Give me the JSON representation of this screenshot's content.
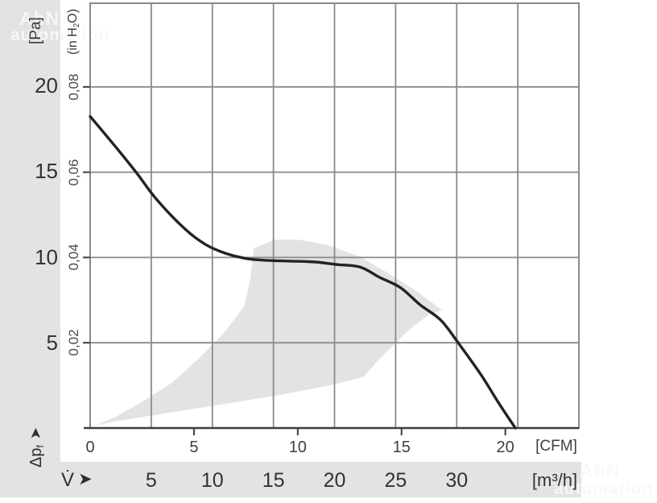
{
  "watermarks": {
    "top_left": {
      "line1": "AbN",
      "line2": "automation"
    },
    "bottom_right": {
      "line1": "AbN",
      "line2": "automation"
    }
  },
  "y_axis": {
    "pa_unit": "[Pa]",
    "pa_ticks": [
      "20",
      "15",
      "10",
      "5"
    ],
    "inh2o_unit_parts": {
      "open": "(in H",
      "sub": "2",
      "close": "O)"
    },
    "inh2o_ticks": [
      "0,08",
      "0,06",
      "0,04",
      "0,02"
    ],
    "title": {
      "main": "Δp",
      "sub": "f",
      "arrow": "➤"
    }
  },
  "x_axis": {
    "cfm_ticks": [
      "0",
      "5",
      "10",
      "15",
      "20"
    ],
    "cfm_unit": "[CFM]",
    "m3h_ticks": [
      "5",
      "10",
      "15",
      "20",
      "25",
      "30"
    ],
    "m3h_unit": "[m³/h]",
    "title": {
      "main": "V̇",
      "arrow": "➤"
    }
  },
  "colors": {
    "band": "#e3e3e3",
    "region_fill": "#e3e3e3",
    "grid": "#8a8a8a",
    "frame": "#8a8a8a",
    "axis": "#3d3d3d",
    "curve": "#232323",
    "text": "#3a3a3a"
  },
  "chart_data": {
    "type": "line",
    "x_unit_primary": "m³/h",
    "x_unit_secondary": "CFM",
    "y_unit_primary": "Pa",
    "y_unit_secondary": "in H₂O",
    "x_range_m3h": [
      0,
      40
    ],
    "y_range_inh2o": [
      0,
      0.1
    ],
    "grid": "on",
    "x_gridline_step_m3h": 5,
    "y_gridline_step_inh2o": 0.02,
    "pa_tick_values": [
      20,
      15,
      10,
      5
    ],
    "inh2o_tick_values": [
      0.08,
      0.06,
      0.04,
      0.02
    ],
    "cfm_tick_values": [
      0,
      5,
      10,
      15,
      20
    ],
    "m3h_tick_values": [
      5,
      10,
      15,
      20,
      25,
      30
    ],
    "cfm_per_m3h": 0.5886,
    "series": [
      {
        "name": "fan-curve",
        "color": "#232323",
        "points_m3h_pa": [
          [
            0,
            18.2
          ],
          [
            2,
            16.5
          ],
          [
            3.8,
            14.9
          ],
          [
            5.5,
            13.3
          ],
          [
            7.8,
            11.6
          ],
          [
            9.5,
            10.7
          ],
          [
            11.1,
            10.2
          ],
          [
            12.8,
            9.9
          ],
          [
            14.4,
            9.8
          ],
          [
            16.4,
            9.75
          ],
          [
            18.4,
            9.7
          ],
          [
            20.2,
            9.55
          ],
          [
            22.1,
            9.4
          ],
          [
            23.7,
            8.8
          ],
          [
            25.4,
            8.2
          ],
          [
            27,
            7.2
          ],
          [
            28.7,
            6.3
          ],
          [
            30.2,
            4.9
          ],
          [
            32,
            3.1
          ],
          [
            33.4,
            1.5
          ],
          [
            34.8,
            0
          ]
        ]
      }
    ],
    "operating_region": {
      "name": "recommended-operating-range",
      "outline_m3h_pa": [
        [
          0.4,
          0.14
        ],
        [
          2.2,
          0.7
        ],
        [
          4.4,
          1.6
        ],
        [
          6.6,
          2.6
        ],
        [
          8.8,
          4.0
        ],
        [
          11.0,
          5.6
        ],
        [
          12.6,
          7.1
        ],
        [
          13.1,
          8.7
        ],
        [
          13.4,
          10.5
        ],
        [
          15.1,
          11.0
        ],
        [
          17.1,
          11.0
        ],
        [
          19.4,
          10.7
        ],
        [
          22.1,
          10.0
        ],
        [
          24.5,
          9.0
        ],
        [
          26.7,
          8.0
        ],
        [
          28.8,
          6.9
        ],
        [
          27.7,
          6.6
        ],
        [
          26.2,
          5.8
        ],
        [
          24.6,
          4.7
        ],
        [
          23.5,
          3.9
        ],
        [
          22.4,
          3.0
        ],
        [
          19.7,
          2.5
        ],
        [
          15.3,
          1.9
        ],
        [
          10.9,
          1.4
        ],
        [
          6.5,
          0.9
        ],
        [
          2.1,
          0.4
        ]
      ]
    }
  }
}
